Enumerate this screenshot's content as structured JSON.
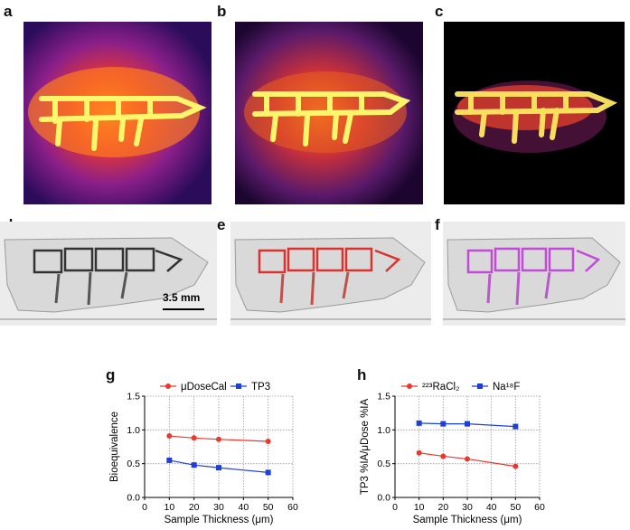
{
  "panels": {
    "a": {
      "letter": "a"
    },
    "b": {
      "letter": "b"
    },
    "c": {
      "letter": "c"
    },
    "d": {
      "letter": "d",
      "scale_bar": "3.5 mm"
    },
    "e": {
      "letter": "e"
    },
    "f": {
      "letter": "f"
    },
    "g": {
      "letter": "g"
    },
    "h": {
      "letter": "h"
    }
  },
  "colors": {
    "red_series": "#e8392e",
    "blue_series": "#1f3fd6",
    "stain_red": "#d8332e",
    "stain_magenta": "#c24ad8"
  },
  "chart_data": [
    {
      "type": "line",
      "panel": "g",
      "xlabel": "Sample Thickness (μm)",
      "ylabel": "Bioequivalence",
      "xlim": [
        0,
        60
      ],
      "ylim": [
        0,
        1.5
      ],
      "xticks": [
        "0",
        "10",
        "20",
        "30",
        "40",
        "50",
        "60"
      ],
      "yticks": [
        "0.0",
        "0.5",
        "1.0",
        "1.5"
      ],
      "grid": true,
      "legend_position": "top",
      "series": [
        {
          "name": "μDoseCal",
          "color": "#e8392e",
          "marker": "circle",
          "x": [
            10,
            20,
            30,
            50
          ],
          "y": [
            0.91,
            0.88,
            0.86,
            0.83
          ]
        },
        {
          "name": "TP3",
          "color": "#1f3fd6",
          "marker": "square",
          "x": [
            10,
            20,
            30,
            50
          ],
          "y": [
            0.55,
            0.48,
            0.44,
            0.37
          ]
        }
      ]
    },
    {
      "type": "line",
      "panel": "h",
      "xlabel": "Sample Thickness (μm)",
      "ylabel": "TP3 %IA/μDose %IA",
      "xlim": [
        0,
        60
      ],
      "ylim": [
        0,
        1.5
      ],
      "xticks": [
        "0",
        "10",
        "20",
        "30",
        "40",
        "50",
        "60"
      ],
      "yticks": [
        "0.0",
        "0.5",
        "1.0",
        "1.5"
      ],
      "grid": true,
      "legend_position": "top",
      "series": [
        {
          "name": "²²³RaCl₂",
          "color": "#e8392e",
          "marker": "circle",
          "x": [
            10,
            20,
            30,
            50
          ],
          "y": [
            0.66,
            0.61,
            0.57,
            0.46
          ]
        },
        {
          "name": "Na¹⁸F",
          "color": "#1f3fd6",
          "marker": "square",
          "x": [
            10,
            20,
            30,
            50
          ],
          "y": [
            1.1,
            1.09,
            1.09,
            1.05
          ]
        }
      ]
    }
  ]
}
